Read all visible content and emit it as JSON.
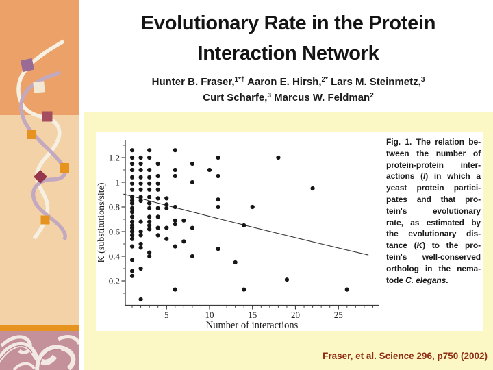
{
  "slide": {
    "title_lines": [
      "Evolutionary Rate in the Protein",
      "Interaction Network"
    ],
    "authors_lines": [
      [
        {
          "t": "Hunter B. Fraser,"
        },
        {
          "t": "1*†",
          "sup": 1
        },
        {
          "t": " Aaron E. Hirsh,"
        },
        {
          "t": "2*",
          "sup": 1
        },
        {
          "t": " Lars M. Steinmetz,"
        },
        {
          "t": "3",
          "sup": 1
        }
      ],
      [
        {
          "t": "Curt Scharfe,"
        },
        {
          "t": "3",
          "sup": 1
        },
        {
          "t": " Marcus W. Feldman"
        },
        {
          "t": "2",
          "sup": 1
        }
      ]
    ],
    "citation": "Fraser, et al. Science 296, p750 (2002)"
  },
  "figure": {
    "caption_lines": [
      [
        {
          "t": "Fig. 1. ",
          "b": 1
        },
        {
          "t": "The relation be-"
        }
      ],
      [
        {
          "t": "tween the number of"
        }
      ],
      [
        {
          "t": "protein-protein inter-"
        }
      ],
      [
        {
          "t": "actions ("
        },
        {
          "t": "I",
          "i": 1
        },
        {
          "t": ") in which a"
        }
      ],
      [
        {
          "t": "yeast protein partici-"
        }
      ],
      [
        {
          "t": "pates and that pro-"
        }
      ],
      [
        {
          "t": "tein's evolutionary"
        }
      ],
      [
        {
          "t": "rate, as estimated by"
        }
      ],
      [
        {
          "t": "the evolutionary dis-"
        }
      ],
      [
        {
          "t": "tance ("
        },
        {
          "t": "K",
          "i": 1
        },
        {
          "t": ") to the pro-"
        }
      ],
      [
        {
          "t": "tein's well-conserved"
        }
      ],
      [
        {
          "t": "ortholog in the nema-"
        }
      ],
      [
        {
          "t": "tode "
        },
        {
          "t": "C. elegans",
          "i": 1
        },
        {
          "t": "."
        }
      ]
    ]
  },
  "chart_data": {
    "type": "scatter",
    "title": "",
    "xlabel": "Number of interactions",
    "ylabel": "K (substitutions/site)",
    "xlim": [
      0,
      29.5
    ],
    "ylim": [
      0,
      1.34
    ],
    "grid": false,
    "xticks": [
      5,
      10,
      15,
      20,
      25
    ],
    "xminor_step": 1,
    "yticks": [
      [
        0.2,
        "0.2"
      ],
      [
        0.4,
        "0.4"
      ],
      [
        0.6,
        "0.6"
      ],
      [
        0.8,
        "0.8"
      ],
      [
        1,
        "1"
      ],
      [
        1.2,
        "1.2"
      ]
    ],
    "yminor_step": 0.1,
    "trend": {
      "x_start": 0,
      "k_start": 0.905,
      "x_end": 28.5,
      "k_end": 0.41
    },
    "points": [
      [
        1,
        1.26
      ],
      [
        1,
        1.2
      ],
      [
        1,
        1.15
      ],
      [
        1,
        1.1
      ],
      [
        1,
        1.04
      ],
      [
        1,
        0.99
      ],
      [
        1,
        0.94
      ],
      [
        1,
        0.88
      ],
      [
        1,
        0.85
      ],
      [
        1,
        0.83
      ],
      [
        1,
        0.79
      ],
      [
        1,
        0.76
      ],
      [
        1,
        0.72
      ],
      [
        1,
        0.68
      ],
      [
        1,
        0.65
      ],
      [
        1,
        0.63
      ],
      [
        1,
        0.6
      ],
      [
        1,
        0.57
      ],
      [
        1,
        0.54
      ],
      [
        1,
        0.48
      ],
      [
        1,
        0.37
      ],
      [
        1,
        0.28
      ],
      [
        1,
        0.24
      ],
      [
        2,
        1.2
      ],
      [
        2,
        1.15
      ],
      [
        2,
        1.1
      ],
      [
        2,
        1.04
      ],
      [
        2,
        0.99
      ],
      [
        2,
        0.94
      ],
      [
        2,
        0.88
      ],
      [
        2,
        0.85
      ],
      [
        2,
        0.68
      ],
      [
        2,
        0.6
      ],
      [
        2,
        0.57
      ],
      [
        2,
        0.5
      ],
      [
        2,
        0.47
      ],
      [
        2,
        0.3
      ],
      [
        2,
        0.05
      ],
      [
        3,
        1.26
      ],
      [
        3,
        1.2
      ],
      [
        3,
        1.1
      ],
      [
        3,
        1.04
      ],
      [
        3,
        0.99
      ],
      [
        3,
        0.94
      ],
      [
        3,
        0.88
      ],
      [
        3,
        0.83
      ],
      [
        3,
        0.79
      ],
      [
        3,
        0.72
      ],
      [
        3,
        0.68
      ],
      [
        3,
        0.65
      ],
      [
        3,
        0.62
      ],
      [
        3,
        0.43
      ],
      [
        3,
        0.4
      ],
      [
        4,
        1.15
      ],
      [
        4,
        1.05
      ],
      [
        4,
        0.99
      ],
      [
        4,
        0.94
      ],
      [
        4,
        0.87
      ],
      [
        4,
        0.79
      ],
      [
        4,
        0.72
      ],
      [
        4,
        0.63
      ],
      [
        4,
        0.57
      ],
      [
        5,
        0.87
      ],
      [
        5,
        0.82
      ],
      [
        5,
        0.79
      ],
      [
        5,
        0.63
      ],
      [
        5,
        0.54
      ],
      [
        6,
        1.26
      ],
      [
        6,
        1.1
      ],
      [
        6,
        1.05
      ],
      [
        6,
        0.8
      ],
      [
        6,
        0.69
      ],
      [
        6,
        0.66
      ],
      [
        6,
        0.48
      ],
      [
        6,
        0.13
      ],
      [
        7,
        0.69
      ],
      [
        7,
        0.52
      ],
      [
        8,
        1.15
      ],
      [
        8,
        1.0
      ],
      [
        8,
        0.63
      ],
      [
        8,
        0.4
      ],
      [
        10,
        1.1
      ],
      [
        11,
        1.2
      ],
      [
        11,
        1.05
      ],
      [
        11,
        0.86
      ],
      [
        11,
        0.8
      ],
      [
        11,
        0.46
      ],
      [
        13,
        0.35
      ],
      [
        14,
        0.65
      ],
      [
        14,
        0.13
      ],
      [
        15,
        0.8
      ],
      [
        18,
        1.2
      ],
      [
        19,
        0.21
      ],
      [
        22,
        0.95
      ],
      [
        26,
        0.13
      ]
    ],
    "point_color": "#161616",
    "trend_color": "#333333",
    "axis_color": "#3a3a3a"
  },
  "colors": {
    "sidebar_top_orange": "#EBA168",
    "sidebar_bottom_peach": "#F4D2A8",
    "accent_orange": "#E6941F",
    "pattern_rose": "#C4919A",
    "slide_yellow": "#FBF8C6",
    "citation_red": "#8E2D12",
    "square_mauve": "#9A6B94",
    "square_cream": "#F2E8D4",
    "square_maroon": "#A34D5F",
    "square_dark_maroon": "#97374B"
  }
}
